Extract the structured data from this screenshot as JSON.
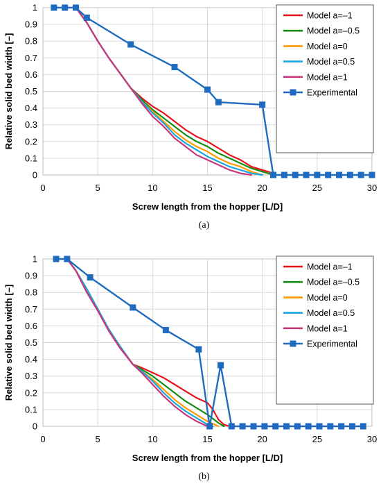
{
  "chart_data": [
    {
      "type": "line",
      "caption": "(a)",
      "xlabel": "Screw length from the hopper [L/D]",
      "ylabel": "Relative solid bed width [–]",
      "xlim": [
        0,
        30
      ],
      "ylim": [
        0,
        1
      ],
      "xticks": [
        0,
        5,
        10,
        15,
        20,
        25,
        30
      ],
      "yticks": [
        0,
        0.1,
        0.2,
        0.3,
        0.4,
        0.5,
        0.6,
        0.7,
        0.8,
        0.9,
        1
      ],
      "ytick_labels": [
        "0",
        "0.1",
        "0.2",
        "0.3",
        "0.4",
        "0.5",
        "0.6",
        "0.7",
        "0.8",
        "0.9",
        "1"
      ],
      "grid": true,
      "legend_position": "top-right",
      "series": [
        {
          "name": "Model a=–1",
          "color": "#e8141c",
          "marker": "none",
          "x": [
            3,
            4,
            5,
            6,
            7,
            8,
            9,
            10,
            11,
            12,
            13,
            14,
            15,
            16,
            17,
            18,
            19,
            20,
            21
          ],
          "y": [
            1,
            0.91,
            0.8,
            0.7,
            0.61,
            0.52,
            0.46,
            0.41,
            0.37,
            0.32,
            0.27,
            0.23,
            0.2,
            0.16,
            0.12,
            0.09,
            0.05,
            0.03,
            0.01
          ]
        },
        {
          "name": "Model a=–0.5",
          "color": "#138d13",
          "marker": "none",
          "x": [
            3,
            4,
            5,
            6,
            7,
            8,
            9,
            10,
            11,
            12,
            13,
            14,
            15,
            16,
            17,
            18,
            19,
            20,
            21
          ],
          "y": [
            1,
            0.91,
            0.8,
            0.7,
            0.61,
            0.52,
            0.45,
            0.39,
            0.34,
            0.29,
            0.24,
            0.2,
            0.17,
            0.13,
            0.1,
            0.07,
            0.04,
            0.02,
            0
          ]
        },
        {
          "name": "Model a=0",
          "color": "#ff9900",
          "marker": "none",
          "x": [
            3,
            4,
            5,
            6,
            7,
            8,
            9,
            10,
            11,
            12,
            13,
            14,
            15,
            16,
            17,
            18,
            19,
            20
          ],
          "y": [
            1,
            0.91,
            0.8,
            0.7,
            0.61,
            0.52,
            0.44,
            0.38,
            0.32,
            0.26,
            0.21,
            0.17,
            0.14,
            0.1,
            0.07,
            0.05,
            0.02,
            0
          ]
        },
        {
          "name": "Model a=0.5",
          "color": "#18a8e0",
          "marker": "none",
          "x": [
            3,
            4,
            5,
            6,
            7,
            8,
            9,
            10,
            11,
            12,
            13,
            14,
            15,
            16,
            17,
            18,
            19,
            20
          ],
          "y": [
            1,
            0.91,
            0.8,
            0.7,
            0.61,
            0.52,
            0.44,
            0.37,
            0.31,
            0.24,
            0.19,
            0.15,
            0.11,
            0.08,
            0.05,
            0.03,
            0.01,
            0
          ]
        },
        {
          "name": "Model a=1",
          "color": "#c8367e",
          "marker": "none",
          "x": [
            3,
            4,
            5,
            6,
            7,
            8,
            9,
            10,
            11,
            12,
            13,
            14,
            15,
            16,
            17,
            18,
            19
          ],
          "y": [
            1,
            0.91,
            0.8,
            0.7,
            0.61,
            0.52,
            0.43,
            0.35,
            0.29,
            0.22,
            0.17,
            0.12,
            0.09,
            0.06,
            0.03,
            0.01,
            0
          ]
        },
        {
          "name": "Experimental",
          "color": "#1f6bc0",
          "marker": "square",
          "x": [
            1,
            2,
            3,
            4,
            8,
            12,
            15,
            16,
            20,
            21,
            22,
            23,
            24,
            25,
            26,
            27,
            28,
            29,
            30
          ],
          "y": [
            1,
            1,
            1,
            0.94,
            0.78,
            0.645,
            0.51,
            0.435,
            0.42,
            0,
            0,
            0,
            0,
            0,
            0,
            0,
            0,
            0,
            0
          ]
        }
      ]
    },
    {
      "type": "line",
      "caption": "(b)",
      "xlabel": "Screw length from the hopper [L/D]",
      "ylabel": "Relative solid bed width [–]",
      "xlim": [
        0,
        30
      ],
      "ylim": [
        0,
        1
      ],
      "xticks": [
        0,
        5,
        10,
        15,
        20,
        25,
        30
      ],
      "yticks": [
        0,
        0.1,
        0.2,
        0.3,
        0.4,
        0.5,
        0.6,
        0.7,
        0.8,
        0.9,
        1
      ],
      "ytick_labels": [
        "0",
        "0.1",
        "0.2",
        "0.3",
        "0.4",
        "0.5",
        "0.6",
        "0.7",
        "0.8",
        "0.9",
        "1"
      ],
      "grid": true,
      "legend_position": "top-right",
      "series": [
        {
          "name": "Model a=–1",
          "color": "#e8141c",
          "marker": "none",
          "x": [
            2.2,
            3,
            4,
            5,
            6,
            7,
            8.2,
            9,
            10,
            11,
            12,
            13,
            14,
            15,
            15.5,
            16,
            16.5,
            17
          ],
          "y": [
            1,
            0.93,
            0.82,
            0.7,
            0.58,
            0.48,
            0.37,
            0.35,
            0.32,
            0.29,
            0.25,
            0.21,
            0.17,
            0.14,
            0.1,
            0.04,
            0.01,
            0
          ]
        },
        {
          "name": "Model a=–0.5",
          "color": "#138d13",
          "marker": "none",
          "x": [
            2.2,
            3,
            4,
            5,
            6,
            7,
            8.2,
            9,
            10,
            11,
            12,
            13,
            14,
            15,
            16,
            16.5
          ],
          "y": [
            1,
            0.93,
            0.82,
            0.7,
            0.58,
            0.48,
            0.37,
            0.34,
            0.3,
            0.25,
            0.2,
            0.15,
            0.11,
            0.07,
            0.02,
            0
          ]
        },
        {
          "name": "Model a=0",
          "color": "#ff9900",
          "marker": "none",
          "x": [
            2.2,
            3,
            4,
            5,
            6,
            7,
            8.2,
            9,
            10,
            11,
            12,
            13,
            14,
            15,
            16
          ],
          "y": [
            1,
            0.93,
            0.82,
            0.7,
            0.58,
            0.48,
            0.37,
            0.33,
            0.28,
            0.22,
            0.16,
            0.11,
            0.07,
            0.03,
            0
          ]
        },
        {
          "name": "Model a=0.5",
          "color": "#18a8e0",
          "marker": "none",
          "x": [
            2.2,
            3,
            4,
            5,
            6,
            7,
            8.2,
            9,
            10,
            11,
            12,
            13,
            14,
            15,
            15.5
          ],
          "y": [
            1,
            0.93,
            0.82,
            0.7,
            0.58,
            0.48,
            0.37,
            0.33,
            0.27,
            0.2,
            0.14,
            0.09,
            0.05,
            0.01,
            0
          ]
        },
        {
          "name": "Model a=1",
          "color": "#c8367e",
          "marker": "none",
          "x": [
            2.2,
            3,
            4,
            5,
            6,
            7,
            8.2,
            9,
            10,
            11,
            12,
            13,
            14,
            15
          ],
          "y": [
            1,
            0.93,
            0.8,
            0.69,
            0.57,
            0.47,
            0.37,
            0.32,
            0.25,
            0.18,
            0.12,
            0.07,
            0.03,
            0
          ]
        },
        {
          "name": "Experimental",
          "color": "#1f6bc0",
          "marker": "square",
          "x": [
            1.2,
            2.2,
            4.3,
            8.2,
            11.2,
            14.2,
            15.2,
            16.2,
            17.2,
            18.2,
            19.2,
            20.2,
            21.2,
            22.2,
            23.2,
            24.2,
            25.2,
            26.2,
            27.2,
            28.2,
            29.2
          ],
          "y": [
            1,
            1,
            0.89,
            0.71,
            0.575,
            0.46,
            0,
            0.365,
            0,
            0,
            0,
            0,
            0,
            0,
            0,
            0,
            0,
            0,
            0,
            0,
            0
          ]
        }
      ]
    }
  ]
}
